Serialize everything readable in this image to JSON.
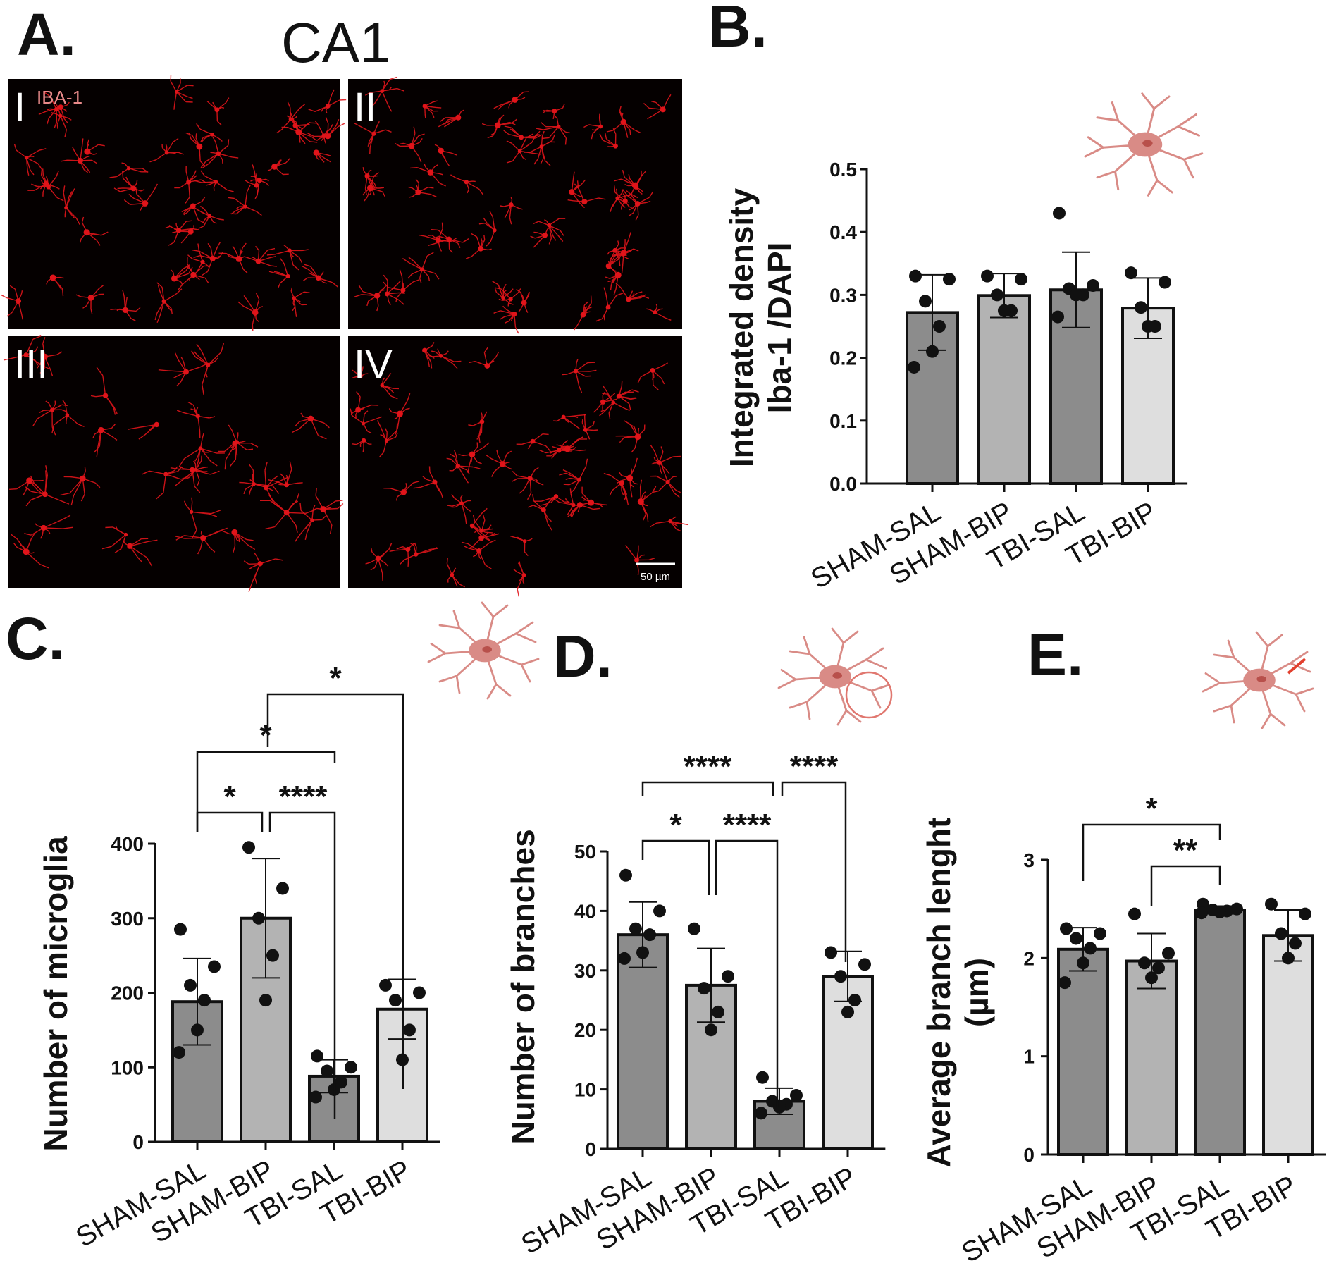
{
  "panel_labels": {
    "a": "A.",
    "b": "B.",
    "c": "C.",
    "d": "D.",
    "e": "E."
  },
  "micrographs": {
    "region_title": "CA1",
    "stain_label": "IBA-1",
    "scale_bar_label": "50 µm",
    "tiles": [
      "I",
      "II",
      "III",
      "IV"
    ],
    "background_color": "#050000",
    "cell_color": "#e0141a"
  },
  "colors": {
    "bar_dark": "#8c8c8c",
    "bar_mid": "#b3b3b3",
    "bar_light": "#dedede",
    "point": "#111111",
    "cell_icon": "#d98b86",
    "cell_body": "#cf6d67"
  },
  "chart_data": [
    {
      "id": "B",
      "type": "bar",
      "title": "",
      "categories": [
        "SHAM-SAL",
        "SHAM-BIP",
        "TBI-SAL",
        "TBI-BIP"
      ],
      "values": [
        0.272,
        0.299,
        0.308,
        0.279
      ],
      "errors": [
        0.06,
        0.035,
        0.06,
        0.048
      ],
      "points": [
        [
          0.33,
          0.325,
          0.29,
          0.25,
          0.21,
          0.185
        ],
        [
          0.33,
          0.325,
          0.3,
          0.275,
          0.275
        ],
        [
          0.43,
          0.315,
          0.31,
          0.3,
          0.3,
          0.265
        ],
        [
          0.335,
          0.32,
          0.28,
          0.25,
          0.25
        ]
      ],
      "xlabel": "",
      "ylabel": [
        "Integrated density",
        "Iba-1 /DAPI"
      ],
      "ylim": [
        0,
        0.5
      ],
      "yticks": [
        "0.0",
        "0.1",
        "0.2",
        "0.3",
        "0.4",
        "0.5"
      ],
      "grid": false,
      "significance": []
    },
    {
      "id": "C",
      "type": "bar",
      "title": "",
      "categories": [
        "SHAM-SAL",
        "SHAM-BIP",
        "TBI-SAL",
        "TBI-BIP"
      ],
      "values": [
        188,
        300,
        88,
        178
      ],
      "errors": [
        58,
        80,
        22,
        40
      ],
      "points": [
        [
          285,
          235,
          210,
          190,
          150,
          120
        ],
        [
          395,
          340,
          300,
          250,
          190
        ],
        [
          115,
          100,
          95,
          80,
          70,
          60
        ],
        [
          210,
          200,
          190,
          150,
          110
        ]
      ],
      "xlabel": "",
      "ylabel": [
        "Number of microglia"
      ],
      "ylim": [
        0,
        400
      ],
      "yticks": [
        "0",
        "100",
        "200",
        "300",
        "400"
      ],
      "grid": false,
      "significance": [
        {
          "from": 0,
          "to": 1,
          "label": "*"
        },
        {
          "from": 1,
          "to": 2,
          "label": "****"
        },
        {
          "from": 0,
          "to": 2,
          "label": "*"
        },
        {
          "from": 1,
          "to": 3,
          "label": "*"
        }
      ]
    },
    {
      "id": "D",
      "type": "bar",
      "title": "",
      "categories": [
        "SHAM-SAL",
        "SHAM-BIP",
        "TBI-SAL",
        "TBI-BIP"
      ],
      "values": [
        36,
        27.5,
        8,
        29
      ],
      "errors": [
        5.5,
        6.2,
        2.2,
        4.2
      ],
      "points": [
        [
          46,
          40,
          37,
          36,
          33,
          32
        ],
        [
          37,
          29,
          27,
          23,
          20
        ],
        [
          12,
          9,
          8,
          7.5,
          7,
          6
        ],
        [
          33,
          31,
          29,
          25,
          23
        ]
      ],
      "xlabel": "",
      "ylabel": [
        "Number of branches"
      ],
      "ylim": [
        0,
        50
      ],
      "yticks": [
        "0",
        "10",
        "20",
        "30",
        "40",
        "50"
      ],
      "grid": false,
      "significance": [
        {
          "from": 0,
          "to": 1,
          "label": "*"
        },
        {
          "from": 1,
          "to": 2,
          "label": "****"
        },
        {
          "from": 0,
          "to": 2,
          "label": "****"
        },
        {
          "from": 2,
          "to": 3,
          "label": "****"
        }
      ]
    },
    {
      "id": "E",
      "type": "bar",
      "title": "",
      "categories": [
        "SHAM-SAL",
        "SHAM-BIP",
        "TBI-SAL",
        "TBI-BIP"
      ],
      "values": [
        2.09,
        1.97,
        2.49,
        2.23
      ],
      "errors": [
        0.22,
        0.28,
        0.04,
        0.26
      ],
      "points": [
        [
          2.3,
          2.25,
          2.2,
          2.1,
          1.95,
          1.75
        ],
        [
          2.45,
          2.05,
          1.95,
          1.9,
          1.8
        ],
        [
          2.55,
          2.5,
          2.49,
          2.48,
          2.47,
          2.46
        ],
        [
          2.55,
          2.45,
          2.25,
          2.15,
          2.0
        ]
      ],
      "xlabel": "",
      "ylabel": [
        "Average branch lenght",
        "(µm)"
      ],
      "ylim": [
        0,
        3
      ],
      "yticks": [
        "0",
        "1",
        "2",
        "3"
      ],
      "grid": false,
      "significance": [
        {
          "from": 1,
          "to": 2,
          "label": "**"
        },
        {
          "from": 0,
          "to": 2,
          "label": "*"
        }
      ]
    }
  ]
}
